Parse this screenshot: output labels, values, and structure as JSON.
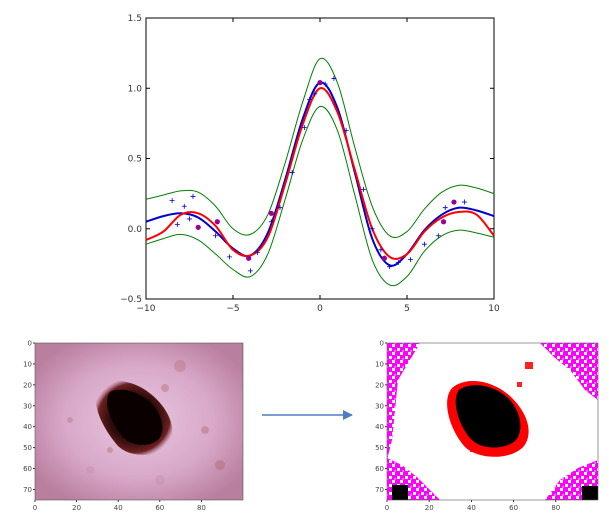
{
  "chart_data": [
    {
      "type": "line",
      "title": "",
      "xlabel": "",
      "ylabel": "",
      "xlim": [
        -10,
        10
      ],
      "ylim": [
        -0.5,
        1.5
      ],
      "grid": false,
      "x_ticks": [
        -10,
        -5,
        0,
        5,
        10
      ],
      "x_tick_labels": [
        "−10",
        "−5",
        "0",
        "5",
        "10"
      ],
      "y_ticks": [
        -0.5,
        0.0,
        0.5,
        1.0,
        1.5
      ],
      "y_tick_labels": [
        "−0.5",
        "0.0",
        "0.5",
        "1.0",
        "1.5"
      ],
      "series": [
        {
          "color": "#0000cc",
          "style": "line",
          "x": [
            -10,
            -9,
            -8,
            -7,
            -6,
            -5,
            -4,
            -3,
            -2,
            -1,
            0,
            1,
            2,
            3,
            4,
            5,
            6,
            7,
            8,
            9,
            10
          ],
          "y": [
            0.05,
            0.09,
            0.11,
            0.08,
            -0.02,
            -0.14,
            -0.19,
            -0.03,
            0.35,
            0.78,
            1.04,
            0.86,
            0.4,
            -0.07,
            -0.26,
            -0.18,
            -0.01,
            0.1,
            0.15,
            0.13,
            0.09
          ]
        },
        {
          "color": "#ff0000",
          "style": "line",
          "x": [
            -10,
            -9,
            -8,
            -7,
            -6,
            -5,
            -4,
            -3,
            -2,
            -1,
            0,
            1,
            2,
            3,
            4,
            5,
            6,
            7,
            8,
            9,
            10
          ],
          "y": [
            -0.08,
            -0.02,
            0.1,
            0.11,
            0.02,
            -0.15,
            -0.19,
            -0.06,
            0.32,
            0.74,
            1.0,
            0.83,
            0.42,
            0.0,
            -0.2,
            -0.18,
            -0.02,
            0.08,
            0.12,
            0.1,
            -0.05
          ]
        },
        {
          "color": "#008000",
          "style": "line",
          "x": [
            -10,
            -9,
            -8,
            -7,
            -6,
            -5,
            -4,
            -3,
            -2,
            -1,
            0,
            1,
            2,
            3,
            4,
            5,
            6,
            7,
            8,
            9,
            10
          ],
          "y": [
            0.21,
            0.24,
            0.27,
            0.26,
            0.16,
            0.0,
            -0.04,
            0.1,
            0.47,
            0.9,
            1.21,
            1.04,
            0.58,
            0.16,
            -0.05,
            -0.02,
            0.14,
            0.26,
            0.31,
            0.29,
            0.25
          ]
        },
        {
          "color": "#008000",
          "style": "line",
          "x": [
            -10,
            -9,
            -8,
            -7,
            -6,
            -5,
            -4,
            -3,
            -2,
            -1,
            0,
            1,
            2,
            3,
            4,
            5,
            6,
            7,
            8,
            9,
            10
          ],
          "y": [
            -0.11,
            -0.07,
            -0.04,
            -0.08,
            -0.18,
            -0.29,
            -0.34,
            -0.18,
            0.21,
            0.63,
            0.87,
            0.7,
            0.24,
            -0.22,
            -0.4,
            -0.34,
            -0.16,
            -0.05,
            -0.01,
            -0.03,
            -0.06
          ]
        },
        {
          "color": "#0000cc",
          "style": "plus",
          "x": [
            -8.5,
            -8.2,
            -7.8,
            -7.5,
            -7.3,
            -6.0,
            -5.2,
            -4.0,
            -3.6,
            -2.8,
            -2.3,
            -1.6,
            -0.9,
            -0.6,
            -0.3,
            0.3,
            0.8,
            1.5,
            2.5,
            3.0,
            3.5,
            4.0,
            4.5,
            5.2,
            6.0,
            6.8,
            7.2,
            8.3
          ],
          "y": [
            0.2,
            0.03,
            0.16,
            0.07,
            0.23,
            -0.05,
            -0.2,
            -0.3,
            -0.17,
            0.05,
            0.15,
            0.4,
            0.72,
            0.92,
            0.96,
            1.03,
            1.07,
            0.7,
            0.28,
            0.0,
            -0.15,
            -0.27,
            -0.24,
            -0.22,
            -0.11,
            -0.05,
            0.15,
            0.19
          ]
        },
        {
          "color": "#990099",
          "style": "circle",
          "x": [
            -7.0,
            -5.9,
            -4.1,
            -2.8,
            0.0,
            3.7,
            7.1,
            7.7
          ],
          "y": [
            0.01,
            0.05,
            -0.21,
            0.11,
            1.04,
            -0.21,
            0.05,
            0.19
          ]
        }
      ]
    },
    {
      "type": "heatmap",
      "title": "",
      "x_ticks": [
        0,
        20,
        40,
        60,
        80
      ],
      "y_ticks": [
        0,
        10,
        20,
        30,
        40,
        50,
        60,
        70
      ],
      "x_tick_labels": [
        "0",
        "20",
        "40",
        "60",
        "80"
      ],
      "y_tick_labels": [
        "0",
        "10",
        "20",
        "30",
        "40",
        "50",
        "60",
        "70"
      ],
      "xlim": [
        0,
        100
      ],
      "ylim": [
        0,
        75
      ]
    },
    {
      "type": "heatmap",
      "title": "",
      "x_ticks": [
        0,
        20,
        40,
        60,
        80
      ],
      "y_ticks": [
        0,
        10,
        20,
        30,
        40,
        50,
        60,
        70
      ],
      "x_tick_labels": [
        "0",
        "20",
        "40",
        "60",
        "80"
      ],
      "y_tick_labels": [
        "0",
        "10",
        "20",
        "30",
        "40",
        "50",
        "60",
        "70"
      ],
      "xlim": [
        0,
        100
      ],
      "ylim": [
        0,
        75
      ]
    }
  ],
  "arrow": {
    "color": "#4f7fc3"
  }
}
